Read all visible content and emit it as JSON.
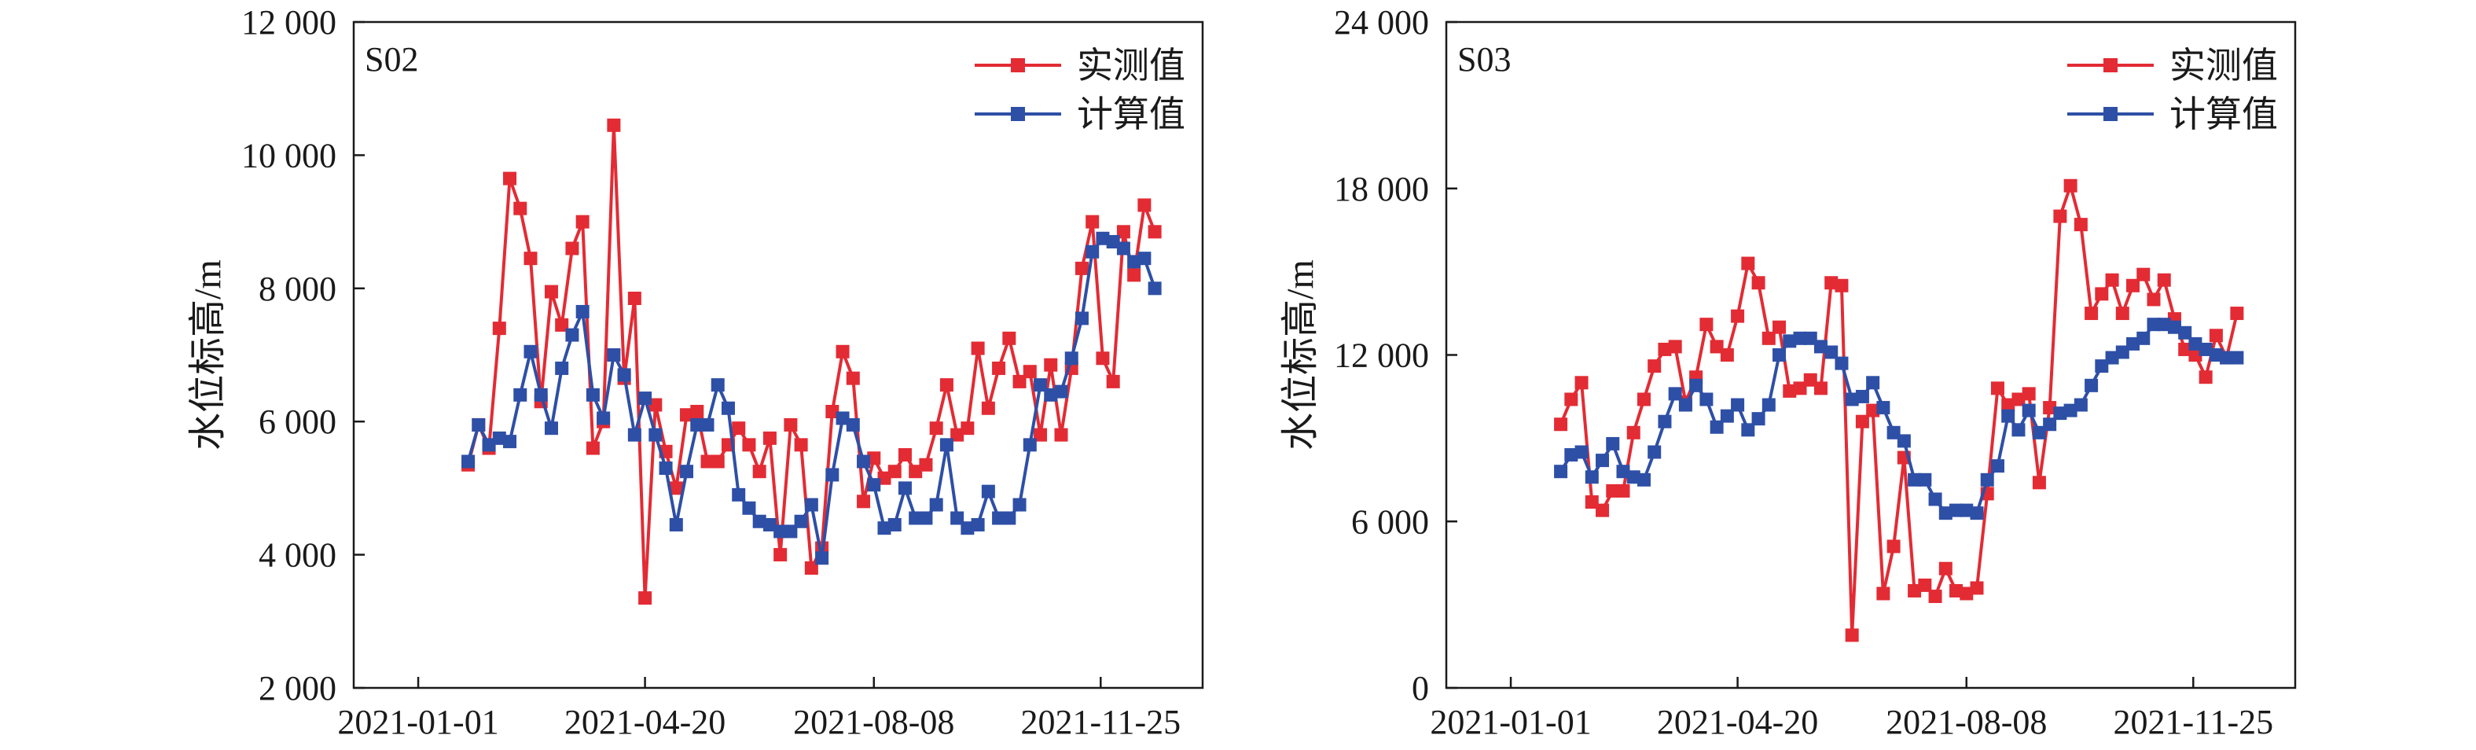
{
  "colors": {
    "measured": "#e32b34",
    "computed": "#2e4fa6",
    "axis": "#1a1a1a"
  },
  "chart_data": [
    {
      "type": "line",
      "panel_label": "S02",
      "ylabel": "水位标高/m",
      "xlim": [
        "2020-12-01",
        "2022-01-13"
      ],
      "ylim": [
        2000,
        12000
      ],
      "yticks": [
        2000,
        4000,
        6000,
        8000,
        10000,
        12000
      ],
      "ytick_labels": [
        "2 000",
        "4 000",
        "6 000",
        "8 000",
        "10 000",
        "12 000"
      ],
      "xticks": [
        "2021-01-01",
        "2021-04-20",
        "2021-08-08",
        "2021-11-25"
      ],
      "legend_position": "top-right",
      "series": [
        {
          "name": "实测值",
          "color": "#e32b34",
          "x": [
            "2021-01-25",
            "2021-01-30",
            "2021-02-04",
            "2021-02-09",
            "2021-02-14",
            "2021-02-19",
            "2021-02-24",
            "2021-03-01",
            "2021-03-06",
            "2021-03-11",
            "2021-03-16",
            "2021-03-21",
            "2021-03-26",
            "2021-03-31",
            "2021-04-05",
            "2021-04-10",
            "2021-04-15",
            "2021-04-20",
            "2021-04-25",
            "2021-04-30",
            "2021-05-05",
            "2021-05-10",
            "2021-05-15",
            "2021-05-20",
            "2021-05-25",
            "2021-05-30",
            "2021-06-04",
            "2021-06-09",
            "2021-06-14",
            "2021-06-19",
            "2021-06-24",
            "2021-06-29",
            "2021-07-04",
            "2021-07-09",
            "2021-07-14",
            "2021-07-19",
            "2021-07-24",
            "2021-07-29",
            "2021-08-03",
            "2021-08-08",
            "2021-08-13",
            "2021-08-18",
            "2021-08-23",
            "2021-08-28",
            "2021-09-02",
            "2021-09-07",
            "2021-09-12",
            "2021-09-17",
            "2021-09-22",
            "2021-09-27",
            "2021-10-02",
            "2021-10-07",
            "2021-10-12",
            "2021-10-17",
            "2021-10-22",
            "2021-10-27",
            "2021-11-01",
            "2021-11-06",
            "2021-11-11",
            "2021-11-16",
            "2021-11-21",
            "2021-11-26",
            "2021-12-01",
            "2021-12-06",
            "2021-12-11",
            "2021-12-16",
            "2021-12-21",
            "2021-12-26"
          ],
          "y": [
            5350,
            5950,
            5600,
            7400,
            9650,
            9200,
            8450,
            6300,
            7950,
            7450,
            8600,
            9000,
            5600,
            6000,
            10450,
            6650,
            7850,
            3350,
            6250,
            5550,
            5000,
            6100,
            6150,
            5400,
            5400,
            5650,
            5900,
            5650,
            5250,
            5750,
            4000,
            5950,
            5650,
            3800,
            4100,
            6150,
            7050,
            6650,
            4800,
            5450,
            5150,
            5250,
            5500,
            5250,
            5350,
            5900,
            6550,
            5800,
            5900,
            7100,
            6200,
            6800,
            7250,
            6600,
            6750,
            5800,
            6850,
            5800,
            6800,
            8300,
            9000,
            6950,
            6600,
            8850,
            8200,
            9250,
            8850,
            null
          ]
        },
        {
          "name": "计算值",
          "color": "#2e4fa6",
          "x": [
            "2021-01-25",
            "2021-01-30",
            "2021-02-04",
            "2021-02-09",
            "2021-02-14",
            "2021-02-19",
            "2021-02-24",
            "2021-03-01",
            "2021-03-06",
            "2021-03-11",
            "2021-03-16",
            "2021-03-21",
            "2021-03-26",
            "2021-03-31",
            "2021-04-05",
            "2021-04-10",
            "2021-04-15",
            "2021-04-20",
            "2021-04-25",
            "2021-04-30",
            "2021-05-05",
            "2021-05-10",
            "2021-05-15",
            "2021-05-20",
            "2021-05-25",
            "2021-05-30",
            "2021-06-04",
            "2021-06-09",
            "2021-06-14",
            "2021-06-19",
            "2021-06-24",
            "2021-06-29",
            "2021-07-04",
            "2021-07-09",
            "2021-07-14",
            "2021-07-19",
            "2021-07-24",
            "2021-07-29",
            "2021-08-03",
            "2021-08-08",
            "2021-08-13",
            "2021-08-18",
            "2021-08-23",
            "2021-08-28",
            "2021-09-02",
            "2021-09-07",
            "2021-09-12",
            "2021-09-17",
            "2021-09-22",
            "2021-09-27",
            "2021-10-02",
            "2021-10-07",
            "2021-10-12",
            "2021-10-17",
            "2021-10-22",
            "2021-10-27",
            "2021-11-01",
            "2021-11-06",
            "2021-11-11",
            "2021-11-16",
            "2021-11-21",
            "2021-11-26",
            "2021-12-01",
            "2021-12-06",
            "2021-12-11",
            "2021-12-16",
            "2021-12-21",
            "2021-12-26"
          ],
          "y": [
            5400,
            5950,
            5650,
            5750,
            5700,
            6400,
            7050,
            6400,
            5900,
            6800,
            7300,
            7650,
            6400,
            6050,
            7000,
            6700,
            5800,
            6350,
            5800,
            5300,
            4450,
            5250,
            5950,
            5950,
            6550,
            6200,
            4900,
            4700,
            4500,
            4450,
            4350,
            4350,
            4500,
            4750,
            3950,
            5200,
            6050,
            5950,
            5400,
            5050,
            4400,
            4450,
            5000,
            4550,
            4550,
            4750,
            5650,
            4550,
            4400,
            4450,
            4950,
            4550,
            4550,
            4750,
            5650,
            6550,
            6400,
            6450,
            6950,
            7550,
            8550,
            8750,
            8700,
            8600,
            8400,
            8450,
            8000,
            null
          ]
        }
      ]
    },
    {
      "type": "line",
      "panel_label": "S03",
      "ylabel": "水位标高/m",
      "xlim": [
        "2020-12-01",
        "2022-01-13"
      ],
      "ylim": [
        0,
        24000
      ],
      "yticks": [
        0,
        6000,
        12000,
        18000,
        24000
      ],
      "ytick_labels": [
        "0",
        "6 000",
        "12 000",
        "18 000",
        "24 000"
      ],
      "xticks": [
        "2021-01-01",
        "2021-04-20",
        "2021-08-08",
        "2021-11-25"
      ],
      "legend_position": "top-right",
      "series": [
        {
          "name": "实测值",
          "color": "#e32b34",
          "x": [
            "2021-01-25",
            "2021-01-30",
            "2021-02-04",
            "2021-02-09",
            "2021-02-14",
            "2021-02-19",
            "2021-02-24",
            "2021-03-01",
            "2021-03-06",
            "2021-03-11",
            "2021-03-16",
            "2021-03-21",
            "2021-03-26",
            "2021-03-31",
            "2021-04-05",
            "2021-04-10",
            "2021-04-15",
            "2021-04-20",
            "2021-04-25",
            "2021-04-30",
            "2021-05-05",
            "2021-05-10",
            "2021-05-15",
            "2021-05-20",
            "2021-05-25",
            "2021-05-30",
            "2021-06-04",
            "2021-06-09",
            "2021-06-14",
            "2021-06-19",
            "2021-06-24",
            "2021-06-29",
            "2021-07-04",
            "2021-07-09",
            "2021-07-14",
            "2021-07-19",
            "2021-07-24",
            "2021-07-29",
            "2021-08-03",
            "2021-08-08",
            "2021-08-13",
            "2021-08-18",
            "2021-08-23",
            "2021-08-28",
            "2021-09-02",
            "2021-09-07",
            "2021-09-12",
            "2021-09-17",
            "2021-09-22",
            "2021-09-27",
            "2021-10-02",
            "2021-10-07",
            "2021-10-12",
            "2021-10-17",
            "2021-10-22",
            "2021-10-27",
            "2021-11-01",
            "2021-11-06",
            "2021-11-11",
            "2021-11-16",
            "2021-11-21",
            "2021-11-26",
            "2021-12-01",
            "2021-12-06",
            "2021-12-11",
            "2021-12-16",
            "2021-12-21",
            "2021-12-26"
          ],
          "y": [
            9500,
            10400,
            11000,
            6700,
            6400,
            7100,
            7100,
            9200,
            10400,
            11600,
            12200,
            12300,
            10300,
            11200,
            13100,
            12300,
            12000,
            13400,
            15300,
            14600,
            12600,
            13000,
            10700,
            10800,
            11100,
            10800,
            14600,
            14500,
            1900,
            9600,
            10000,
            3400,
            5100,
            8300,
            3500,
            3700,
            3300,
            4300,
            3500,
            3400,
            3600,
            7000,
            10800,
            10200,
            10400,
            10600,
            7400,
            10100,
            17000,
            18100,
            16700,
            13500,
            14200,
            14700,
            13500,
            14500,
            14900,
            14000,
            14700,
            13300,
            12200,
            12000,
            11200,
            12700,
            11900,
            13500,
            null,
            null
          ]
        },
        {
          "name": "计算值",
          "color": "#2e4fa6",
          "x": [
            "2021-01-25",
            "2021-01-30",
            "2021-02-04",
            "2021-02-09",
            "2021-02-14",
            "2021-02-19",
            "2021-02-24",
            "2021-03-01",
            "2021-03-06",
            "2021-03-11",
            "2021-03-16",
            "2021-03-21",
            "2021-03-26",
            "2021-03-31",
            "2021-04-05",
            "2021-04-10",
            "2021-04-15",
            "2021-04-20",
            "2021-04-25",
            "2021-04-30",
            "2021-05-05",
            "2021-05-10",
            "2021-05-15",
            "2021-05-20",
            "2021-05-25",
            "2021-05-30",
            "2021-06-04",
            "2021-06-09",
            "2021-06-14",
            "2021-06-19",
            "2021-06-24",
            "2021-06-29",
            "2021-07-04",
            "2021-07-09",
            "2021-07-14",
            "2021-07-19",
            "2021-07-24",
            "2021-07-29",
            "2021-08-03",
            "2021-08-08",
            "2021-08-13",
            "2021-08-18",
            "2021-08-23",
            "2021-08-28",
            "2021-09-02",
            "2021-09-07",
            "2021-09-12",
            "2021-09-17",
            "2021-09-22",
            "2021-09-27",
            "2021-10-02",
            "2021-10-07",
            "2021-10-12",
            "2021-10-17",
            "2021-10-22",
            "2021-10-27",
            "2021-11-01",
            "2021-11-06",
            "2021-11-11",
            "2021-11-16",
            "2021-11-21",
            "2021-11-26",
            "2021-12-01",
            "2021-12-06",
            "2021-12-11",
            "2021-12-16",
            "2021-12-21",
            "2021-12-26"
          ],
          "y": [
            7800,
            8400,
            8500,
            7600,
            8200,
            8800,
            7800,
            7600,
            7500,
            8500,
            9600,
            10600,
            10200,
            10900,
            10400,
            9400,
            9800,
            10200,
            9300,
            9700,
            10200,
            12000,
            12500,
            12600,
            12600,
            12300,
            12100,
            11700,
            10400,
            10500,
            11000,
            10100,
            9200,
            8900,
            7500,
            7500,
            6800,
            6300,
            6400,
            6400,
            6300,
            7500,
            8000,
            9800,
            9300,
            10000,
            9200,
            9500,
            9900,
            10000,
            10200,
            10900,
            11600,
            11900,
            12100,
            12400,
            12600,
            13100,
            13100,
            13000,
            12800,
            12400,
            12200,
            12000,
            11900,
            11900,
            null,
            null
          ]
        }
      ]
    }
  ]
}
